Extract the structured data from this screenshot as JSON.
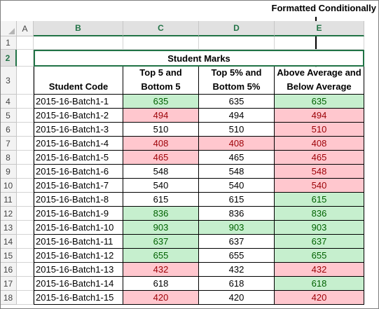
{
  "callout": "Formatted Conditionally",
  "columns": [
    "A",
    "B",
    "C",
    "D",
    "E"
  ],
  "row_numbers": [
    "1",
    "2",
    "3",
    "4",
    "5",
    "6",
    "7",
    "8",
    "9",
    "10",
    "11",
    "12",
    "13",
    "14",
    "15",
    "16",
    "17",
    "18"
  ],
  "table": {
    "title": "Student Marks",
    "headers": [
      "Student Code",
      "Top 5 and Bottom 5",
      "Top 5% and Bottom 5%",
      "Above Average and Below Average"
    ],
    "rows": [
      {
        "code": "2015-16-Batch1-1",
        "c": "635",
        "d": "635",
        "e": "635"
      },
      {
        "code": "2015-16-Batch1-2",
        "c": "494",
        "d": "494",
        "e": "494"
      },
      {
        "code": "2015-16-Batch1-3",
        "c": "510",
        "d": "510",
        "e": "510"
      },
      {
        "code": "2015-16-Batch1-4",
        "c": "408",
        "d": "408",
        "e": "408"
      },
      {
        "code": "2015-16-Batch1-5",
        "c": "465",
        "d": "465",
        "e": "465"
      },
      {
        "code": "2015-16-Batch1-6",
        "c": "548",
        "d": "548",
        "e": "548"
      },
      {
        "code": "2015-16-Batch1-7",
        "c": "540",
        "d": "540",
        "e": "540"
      },
      {
        "code": "2015-16-Batch1-8",
        "c": "615",
        "d": "615",
        "e": "615"
      },
      {
        "code": "2015-16-Batch1-9",
        "c": "836",
        "d": "836",
        "e": "836"
      },
      {
        "code": "2015-16-Batch1-10",
        "c": "903",
        "d": "903",
        "e": "903"
      },
      {
        "code": "2015-16-Batch1-11",
        "c": "637",
        "d": "637",
        "e": "637"
      },
      {
        "code": "2015-16-Batch1-12",
        "c": "655",
        "d": "655",
        "e": "655"
      },
      {
        "code": "2015-16-Batch1-13",
        "c": "432",
        "d": "432",
        "e": "432"
      },
      {
        "code": "2015-16-Batch1-14",
        "c": "618",
        "d": "618",
        "e": "618"
      },
      {
        "code": "2015-16-Batch1-15",
        "c": "420",
        "d": "420",
        "e": "420"
      }
    ]
  },
  "formatting": {
    "c": [
      "green",
      "red",
      "",
      "red",
      "red",
      "",
      "",
      "",
      "green",
      "green",
      "green",
      "green",
      "red",
      "",
      "red"
    ],
    "d": [
      "",
      "",
      "",
      "red",
      "",
      "",
      "",
      "",
      "",
      "green",
      "",
      "",
      "",
      "",
      ""
    ],
    "e": [
      "green",
      "red",
      "red",
      "red",
      "red",
      "red",
      "red",
      "green",
      "green",
      "green",
      "green",
      "green",
      "red",
      "green",
      "red"
    ]
  },
  "colors": {
    "good_fill": "#c6efce",
    "good_text": "#006100",
    "bad_fill": "#ffc7ce",
    "bad_text": "#9c0006",
    "selection": "#217346"
  }
}
